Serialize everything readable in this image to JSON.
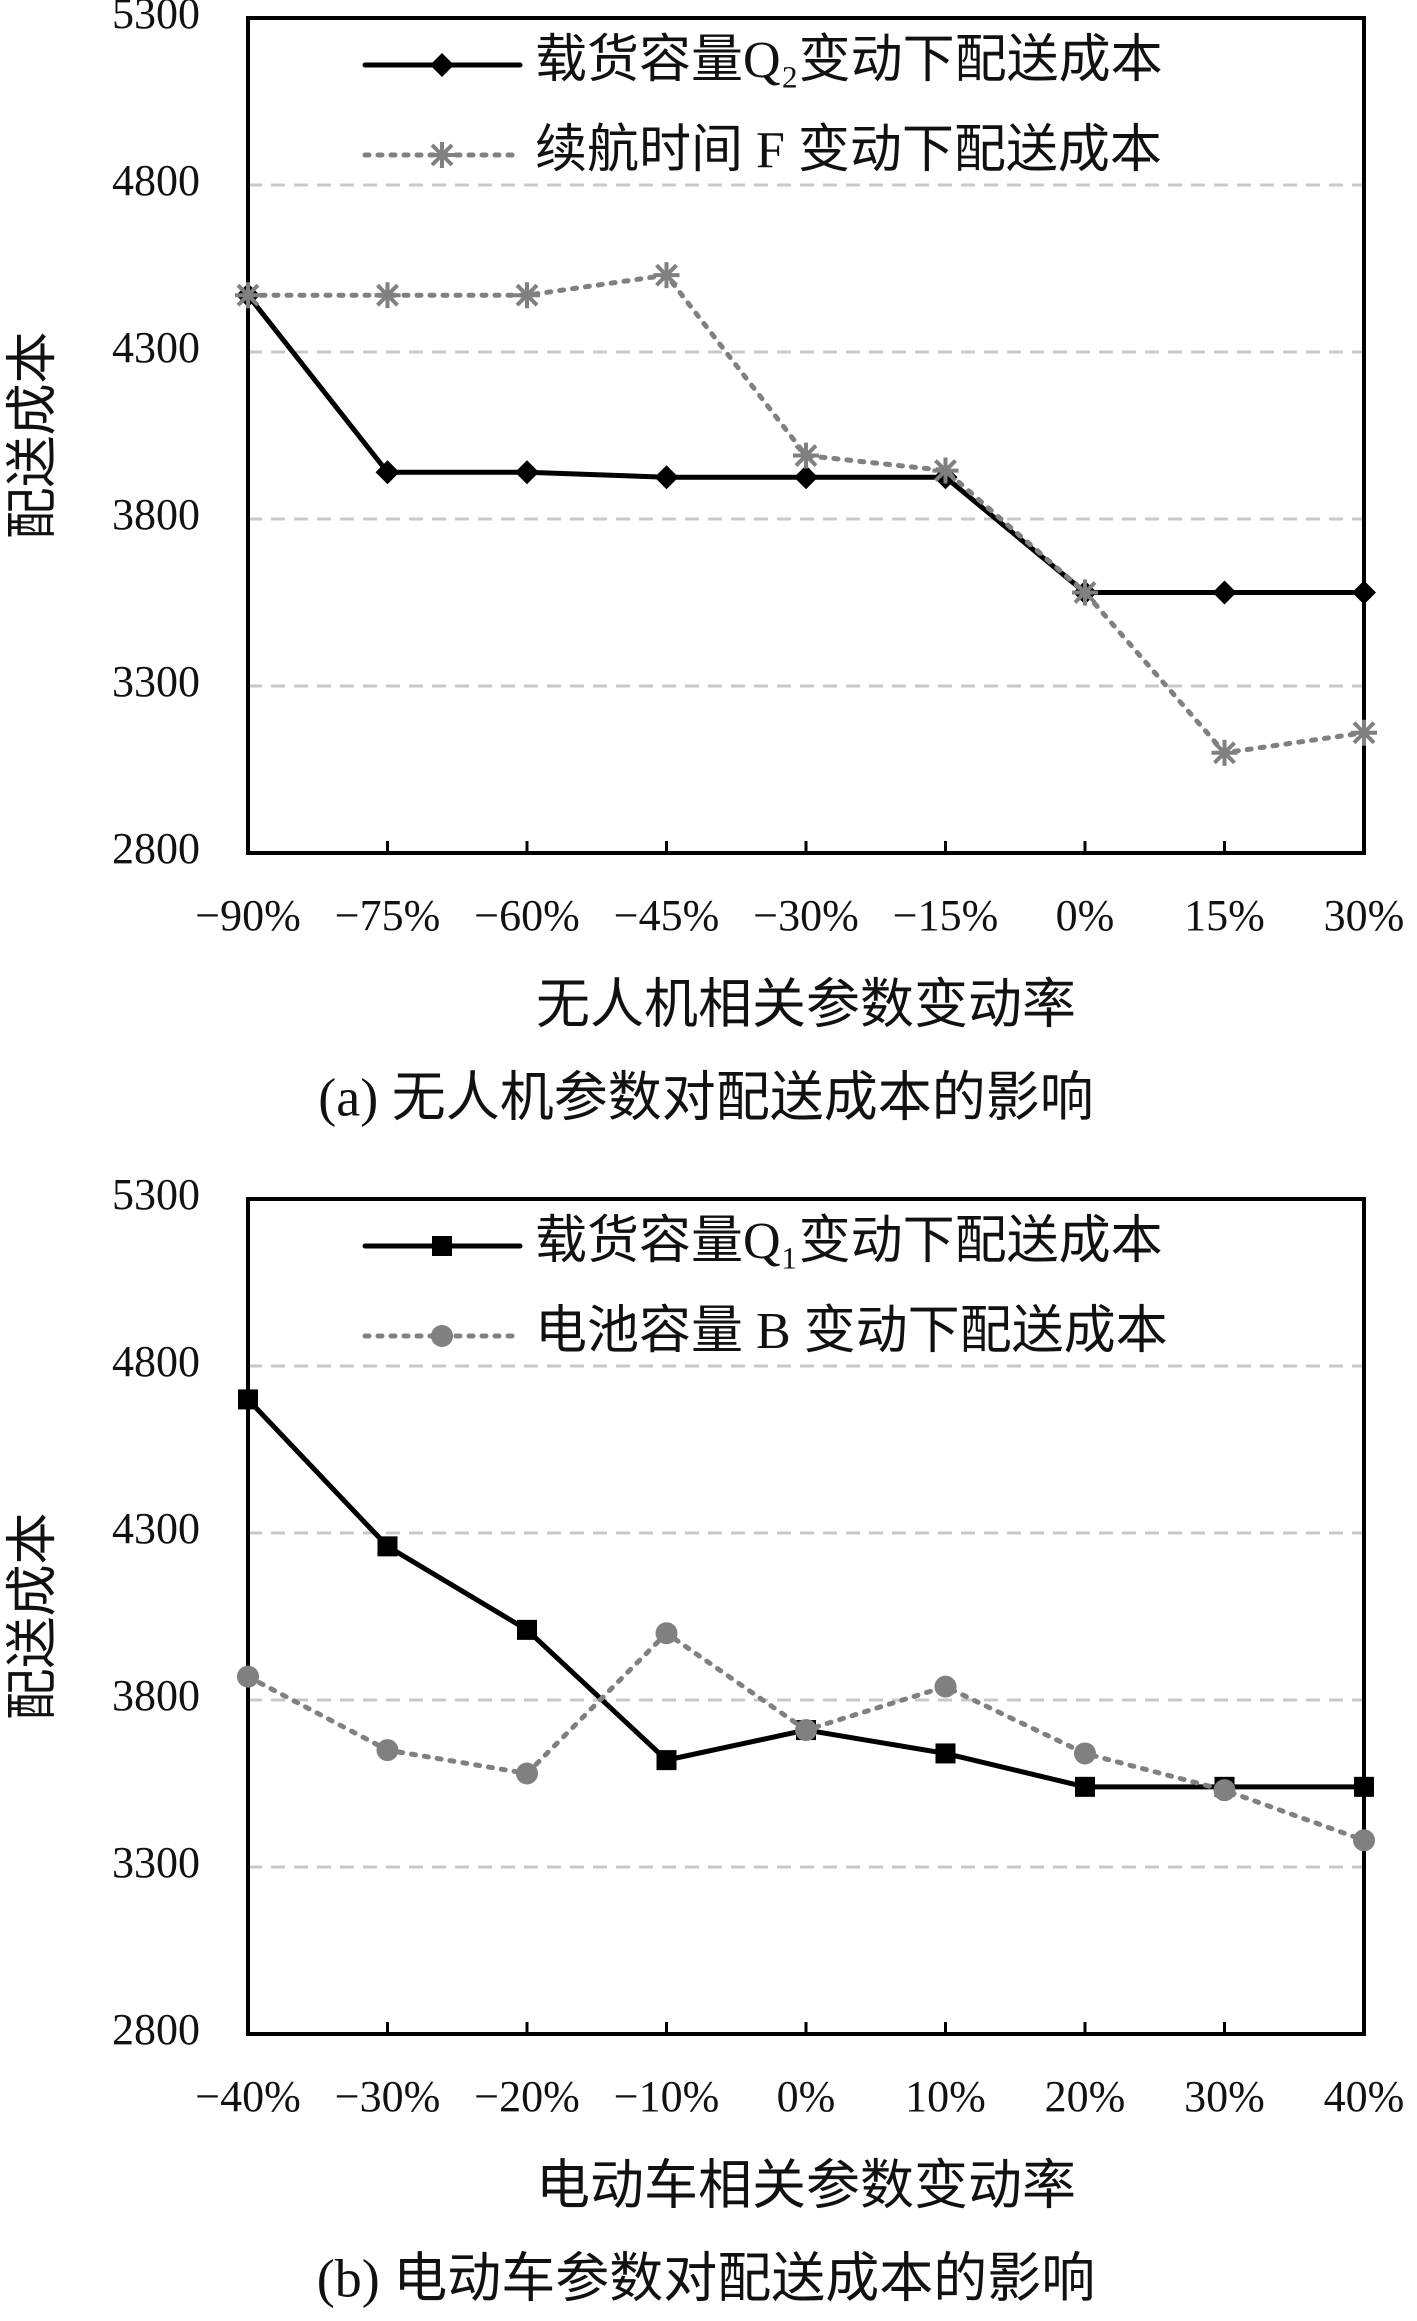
{
  "chart_data": [
    {
      "type": "line",
      "caption": "(a) 无人机参数对配送成本的影响",
      "xlabel": "无人机相关参数变动率",
      "ylabel": "配送成本",
      "categories": [
        "−90%",
        "−75%",
        "−60%",
        "−45%",
        "−30%",
        "−15%",
        "0%",
        "15%",
        "30%"
      ],
      "series": [
        {
          "name": "载货容量Q₂变动下配送成本",
          "color": "#000000",
          "dash": "solid",
          "marker": "diamond",
          "values": [
            4470,
            3940,
            3940,
            3925,
            3925,
            3925,
            3580,
            3580,
            3580
          ]
        },
        {
          "name": "续航时间 F 变动下配送成本",
          "color": "#808080",
          "dash": "dotted",
          "marker": "asterisk",
          "values": [
            4470,
            4470,
            4470,
            4530,
            3990,
            3945,
            3580,
            3100,
            3160
          ]
        }
      ],
      "ylim": [
        2800,
        5300
      ],
      "yticks": [
        2800,
        3300,
        3800,
        4300,
        4800,
        5300
      ],
      "grid": true
    },
    {
      "type": "line",
      "caption": "(b) 电动车参数对配送成本的影响",
      "xlabel": "电动车相关参数变动率",
      "ylabel": "配送成本",
      "categories": [
        "−40%",
        "−30%",
        "−20%",
        "−10%",
        "0%",
        "10%",
        "20%",
        "30%",
        "40%"
      ],
      "series": [
        {
          "name": "载货容量Q₁变动下配送成本",
          "color": "#000000",
          "dash": "solid",
          "marker": "square",
          "values": [
            4700,
            4260,
            4010,
            3620,
            3710,
            3640,
            3540,
            3540,
            3540
          ]
        },
        {
          "name": "电池容量 B 变动下配送成本",
          "color": "#808080",
          "dash": "dotted",
          "marker": "circle",
          "values": [
            3870,
            3650,
            3580,
            4000,
            3710,
            3840,
            3640,
            3530,
            3380
          ]
        }
      ],
      "ylim": [
        2800,
        5300
      ],
      "yticks": [
        2800,
        3300,
        3800,
        4300,
        4800,
        5300
      ],
      "grid": true
    }
  ]
}
